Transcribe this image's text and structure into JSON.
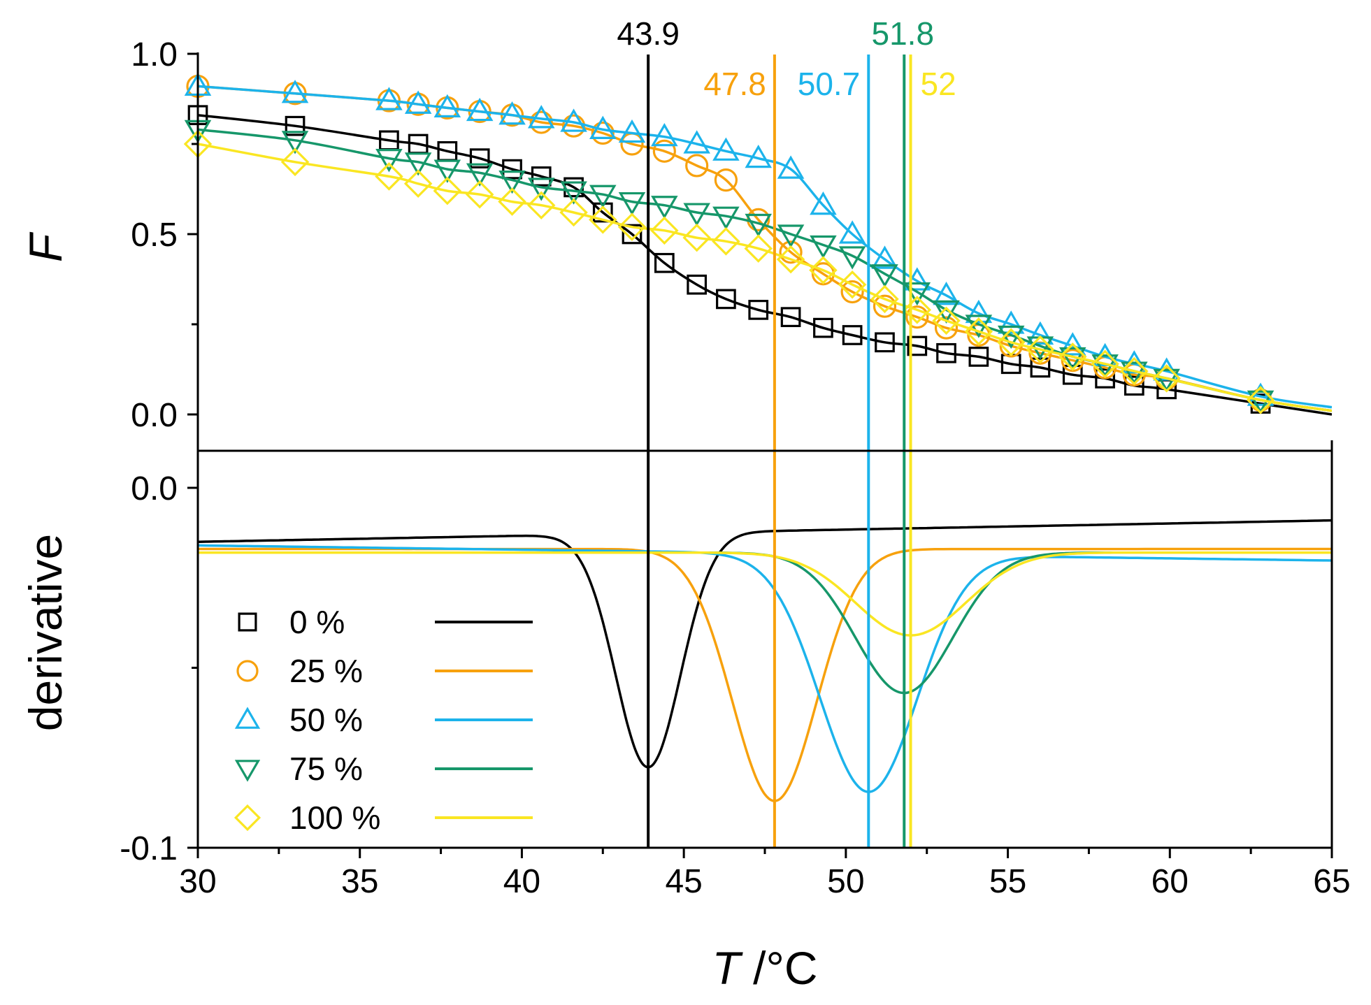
{
  "chart_data": {
    "type": "line",
    "panels": [
      "F",
      "derivative"
    ],
    "xlabel_italic": "T",
    "xlabel_unit": " /°C",
    "xlim": [
      30,
      65
    ],
    "xticks": [
      "30",
      "35",
      "40",
      "45",
      "50",
      "55",
      "60",
      "65"
    ],
    "top": {
      "ylabel": "F",
      "ylim": [
        -0.1,
        1.0
      ],
      "yticks": [
        "0.0",
        "0.5",
        "1.0"
      ]
    },
    "bottom": {
      "ylabel": "derivative",
      "ylim": [
        -0.1,
        0.01
      ],
      "yticks": [
        "-0.1",
        "0.0"
      ]
    },
    "legend": {
      "position": "bottom-left"
    },
    "series": [
      {
        "name": "0 %",
        "color": "#000000",
        "marker": "square",
        "tm": 43.9,
        "tm_label": "43.9",
        "x": [
          30,
          33,
          35.9,
          36.8,
          37.7,
          38.7,
          39.7,
          40.6,
          41.6,
          42.5,
          43.4,
          44.4,
          45.4,
          46.3,
          47.3,
          48.3,
          49.3,
          50.2,
          51.2,
          52.2,
          53.1,
          54.1,
          55.1,
          56.0,
          57.0,
          58.0,
          58.9,
          59.9,
          62.8
        ],
        "y": [
          0.83,
          0.8,
          0.76,
          0.75,
          0.73,
          0.71,
          0.68,
          0.66,
          0.63,
          0.56,
          0.5,
          0.42,
          0.36,
          0.32,
          0.29,
          0.27,
          0.24,
          0.22,
          0.2,
          0.19,
          0.17,
          0.16,
          0.14,
          0.13,
          0.11,
          0.1,
          0.08,
          0.07,
          0.03
        ],
        "deriv_base": -0.015,
        "deriv_min": -0.08,
        "deriv_width": 1.0
      },
      {
        "name": "25 %",
        "color": "#F7A10D",
        "marker": "circle",
        "tm": 47.8,
        "tm_label": "47.8",
        "x": [
          30,
          33,
          35.9,
          36.8,
          37.7,
          38.7,
          39.7,
          40.6,
          41.6,
          42.5,
          43.4,
          44.4,
          45.4,
          46.3,
          47.3,
          48.3,
          49.3,
          50.2,
          51.2,
          52.2,
          53.1,
          54.1,
          55.1,
          56.0,
          57.0,
          58.0,
          58.9,
          59.9,
          62.8
        ],
        "y": [
          0.91,
          0.89,
          0.87,
          0.86,
          0.85,
          0.84,
          0.83,
          0.81,
          0.8,
          0.78,
          0.75,
          0.73,
          0.69,
          0.65,
          0.54,
          0.45,
          0.39,
          0.34,
          0.3,
          0.27,
          0.24,
          0.22,
          0.19,
          0.17,
          0.15,
          0.13,
          0.11,
          0.1,
          0.04
        ],
        "deriv_base": -0.017,
        "deriv_min": -0.087,
        "deriv_width": 1.3
      },
      {
        "name": "50 %",
        "color": "#1CB3EB",
        "marker": "triangle-up",
        "tm": 50.7,
        "tm_label": "50.7",
        "x": [
          30,
          33,
          35.9,
          36.8,
          37.7,
          38.7,
          39.7,
          40.6,
          41.6,
          42.5,
          43.4,
          44.4,
          45.4,
          46.3,
          47.3,
          48.3,
          49.3,
          50.2,
          51.2,
          52.2,
          53.1,
          54.1,
          55.1,
          56.0,
          57.0,
          58.0,
          58.9,
          59.9,
          62.8
        ],
        "y": [
          0.91,
          0.89,
          0.87,
          0.86,
          0.85,
          0.84,
          0.83,
          0.82,
          0.81,
          0.79,
          0.78,
          0.77,
          0.75,
          0.73,
          0.71,
          0.68,
          0.58,
          0.5,
          0.43,
          0.37,
          0.33,
          0.28,
          0.25,
          0.22,
          0.19,
          0.16,
          0.14,
          0.12,
          0.05
        ],
        "deriv_base": -0.016,
        "deriv_min": -0.082,
        "deriv_width": 1.5
      },
      {
        "name": "75 %",
        "color": "#16976A",
        "marker": "triangle-down",
        "tm": 51.8,
        "tm_label": "51.8",
        "x": [
          30,
          33,
          35.9,
          36.8,
          37.7,
          38.7,
          39.7,
          40.6,
          41.6,
          42.5,
          43.4,
          44.4,
          45.4,
          46.3,
          47.3,
          48.3,
          49.3,
          50.2,
          51.2,
          52.2,
          53.1,
          54.1,
          55.1,
          56.0,
          57.0,
          58.0,
          58.9,
          59.9,
          62.8
        ],
        "y": [
          0.79,
          0.76,
          0.71,
          0.7,
          0.68,
          0.67,
          0.65,
          0.63,
          0.62,
          0.61,
          0.59,
          0.58,
          0.56,
          0.55,
          0.53,
          0.5,
          0.47,
          0.44,
          0.39,
          0.34,
          0.29,
          0.25,
          0.22,
          0.19,
          0.16,
          0.14,
          0.12,
          0.1,
          0.04
        ],
        "deriv_base": -0.018,
        "deriv_min": -0.057,
        "deriv_width": 1.5
      },
      {
        "name": "100 %",
        "color": "#FAE622",
        "marker": "diamond",
        "tm": 52.0,
        "tm_label": "52",
        "x": [
          30,
          33,
          35.9,
          36.8,
          37.7,
          38.7,
          39.7,
          40.6,
          41.6,
          42.5,
          43.4,
          44.4,
          45.4,
          46.3,
          47.3,
          48.3,
          49.3,
          50.2,
          51.2,
          52.2,
          53.1,
          54.1,
          55.1,
          56.0,
          57.0,
          58.0,
          58.9,
          59.9,
          62.8
        ],
        "y": [
          0.75,
          0.7,
          0.66,
          0.64,
          0.62,
          0.61,
          0.59,
          0.58,
          0.56,
          0.54,
          0.52,
          0.51,
          0.49,
          0.48,
          0.46,
          0.43,
          0.4,
          0.36,
          0.32,
          0.29,
          0.26,
          0.23,
          0.2,
          0.18,
          0.16,
          0.14,
          0.12,
          0.1,
          0.04
        ],
        "deriv_base": -0.018,
        "deriv_min": -0.041,
        "deriv_width": 1.7
      }
    ]
  }
}
